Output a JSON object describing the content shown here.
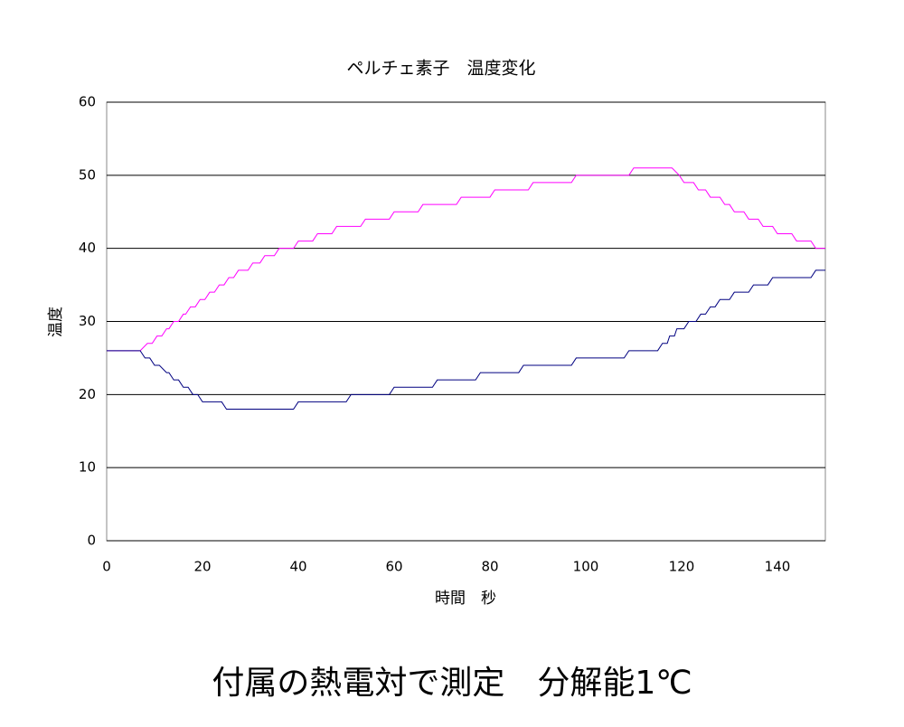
{
  "chart_data": {
    "type": "line",
    "title": "ペルチェ素子　温度変化",
    "x_label": "時間　秒",
    "y_label": "温度",
    "annotation": "付属の熱電対で測定　分解能1℃",
    "xlim": [
      0,
      150
    ],
    "xticks": [
      0,
      20,
      40,
      60,
      80,
      100,
      120,
      140
    ],
    "ylim": [
      0,
      60
    ],
    "yticks": [
      0,
      10,
      20,
      30,
      40,
      50,
      60
    ],
    "grid": true,
    "series": [
      {
        "color": "#ff00ff",
        "x": [
          0,
          7,
          8.5,
          9.5,
          10.5,
          11.5,
          12.5,
          13,
          14,
          15,
          16,
          16.5,
          17.5,
          18.5,
          19.5,
          20.5,
          21.5,
          22.5,
          23.5,
          24.5,
          25.5,
          26.5,
          27.5,
          29.5,
          30.5,
          32,
          33,
          35,
          36,
          39,
          40,
          43,
          44,
          47,
          48,
          53,
          54,
          59,
          60,
          65,
          66,
          73,
          74,
          80,
          81,
          88,
          89,
          97,
          98,
          109,
          110,
          118,
          119.5,
          120.5,
          122.5,
          123.5,
          125,
          126,
          128,
          129,
          130,
          131,
          133,
          134,
          136,
          137,
          139,
          140,
          143,
          144,
          147,
          148,
          150
        ],
        "values": [
          26,
          26,
          27,
          27,
          28,
          28,
          29,
          29,
          30,
          30,
          31,
          31,
          32,
          32,
          33,
          33,
          34,
          34,
          35,
          35,
          36,
          36,
          37,
          37,
          38,
          38,
          39,
          39,
          40,
          40,
          41,
          41,
          42,
          42,
          43,
          43,
          44,
          44,
          45,
          45,
          46,
          46,
          47,
          47,
          48,
          48,
          49,
          49,
          50,
          50,
          51,
          51,
          50,
          49,
          49,
          48,
          48,
          47,
          47,
          46,
          46,
          45,
          45,
          44,
          44,
          43,
          43,
          42,
          42,
          41,
          41,
          40,
          40
        ]
      },
      {
        "color": "#000080",
        "x": [
          0,
          7,
          8,
          9,
          10,
          11,
          12.5,
          13,
          14,
          15,
          16,
          17,
          18,
          19,
          20,
          24,
          25,
          39,
          40,
          50,
          51,
          59,
          60,
          68,
          69,
          77,
          78,
          86,
          87,
          97,
          98,
          108,
          109,
          115,
          116,
          117,
          117.5,
          118.5,
          119,
          120.5,
          121.5,
          123,
          124,
          125,
          126,
          127,
          128,
          130,
          131,
          134,
          135,
          138,
          139,
          147,
          148,
          150
        ],
        "values": [
          26,
          26,
          25,
          25,
          24,
          24,
          23,
          23,
          22,
          22,
          21,
          21,
          20,
          20,
          19,
          19,
          18,
          18,
          19,
          19,
          20,
          20,
          21,
          21,
          22,
          22,
          23,
          23,
          24,
          24,
          25,
          25,
          26,
          26,
          27,
          27,
          28,
          28,
          29,
          29,
          30,
          30,
          31,
          31,
          32,
          32,
          33,
          33,
          34,
          34,
          35,
          35,
          36,
          36,
          37,
          37
        ]
      }
    ]
  }
}
